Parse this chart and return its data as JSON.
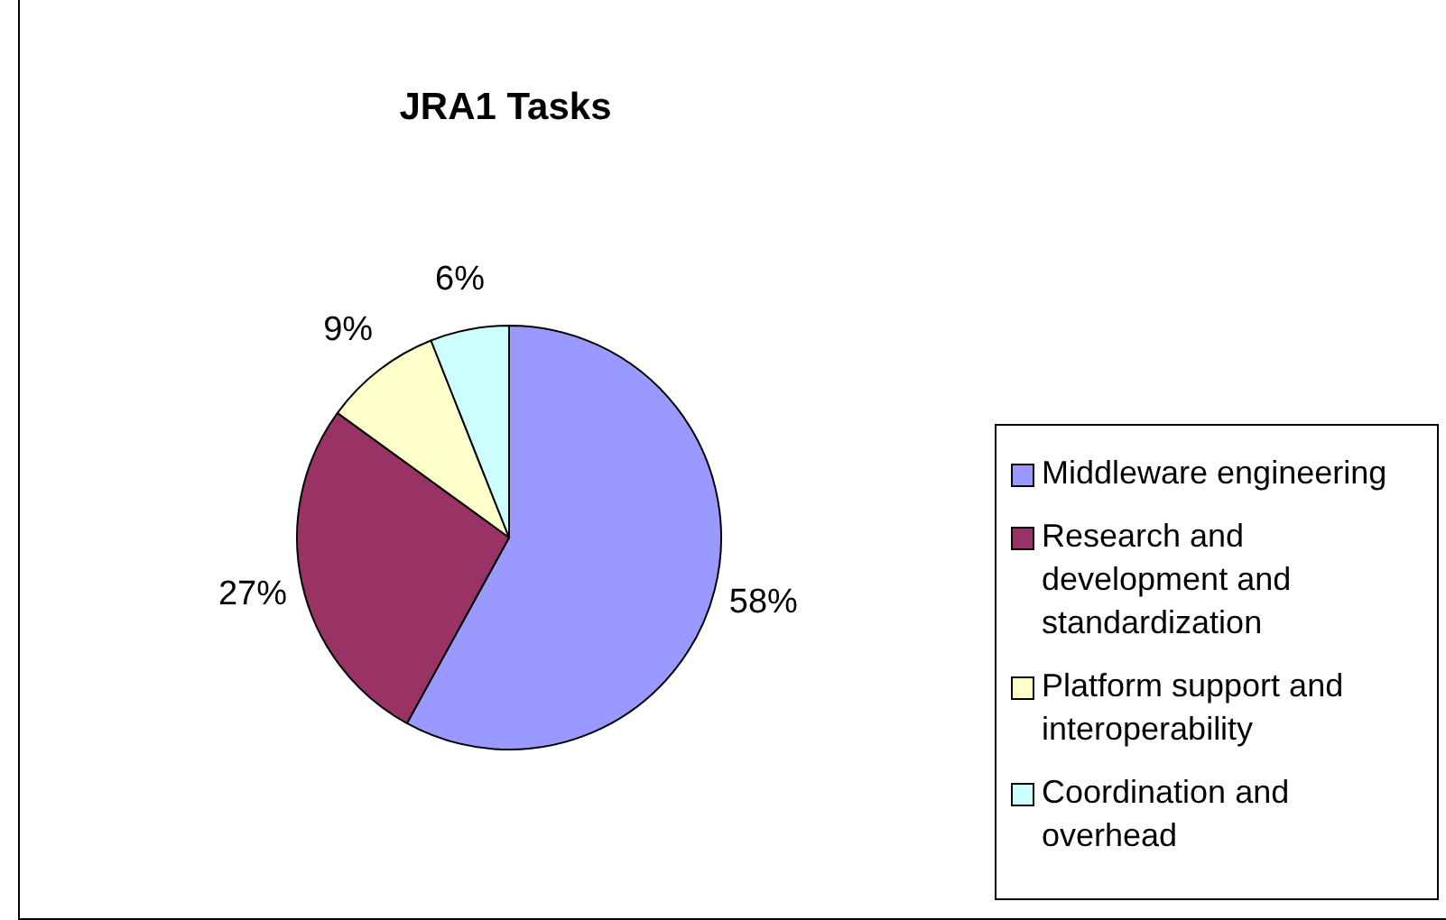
{
  "chart_data": {
    "type": "pie",
    "title": "JRA1 Tasks",
    "categories": [
      "Middleware engineering",
      "Research and development and standardization",
      "Platform support and interoperability",
      "Coordination and overhead"
    ],
    "values": [
      58,
      27,
      9,
      6
    ],
    "colors": [
      "#9999ff",
      "#993366",
      "#ffffcc",
      "#ccffff"
    ],
    "value_labels": [
      "58%",
      "27%",
      "9%",
      "6%"
    ],
    "legend": "right"
  }
}
